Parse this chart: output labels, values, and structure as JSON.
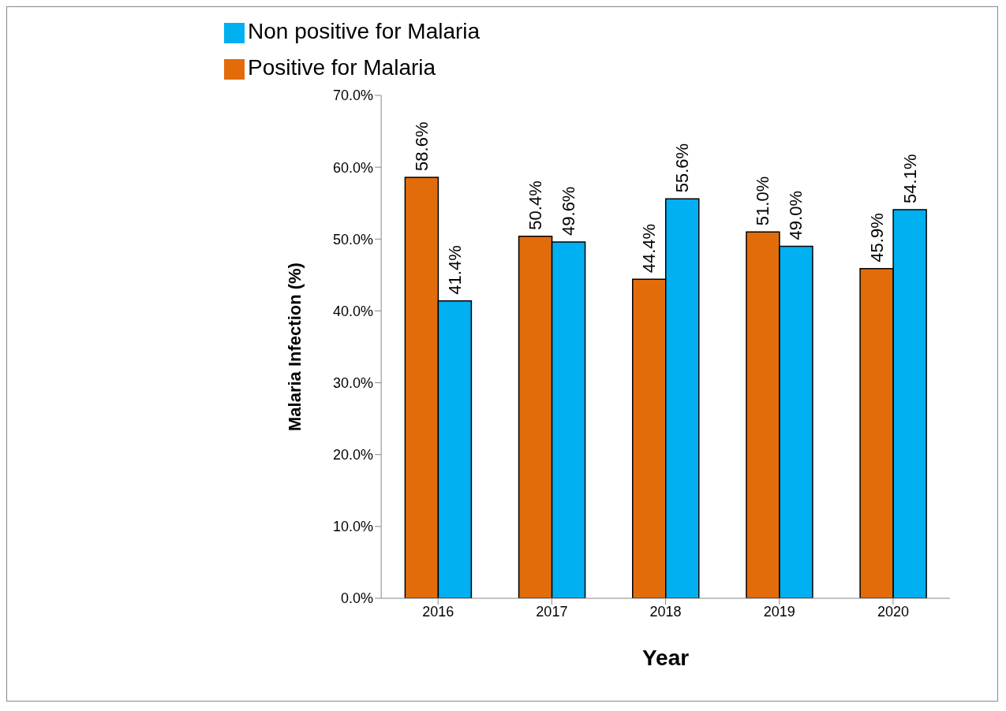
{
  "chart_data": {
    "type": "bar",
    "xlabel": "Year",
    "ylabel": "Malaria Infection (%)",
    "categories": [
      "2016",
      "2017",
      "2018",
      "2019",
      "2020"
    ],
    "series": [
      {
        "name": "Positive for Malaria",
        "color": "#e36c0a",
        "values": [
          58.6,
          50.4,
          44.4,
          51.0,
          45.9
        ],
        "value_labels": [
          "58.6%",
          "50.4%",
          "44.4%",
          "51.0%",
          "45.9%"
        ]
      },
      {
        "name": "Non positive for Malaria",
        "color": "#00b0f0",
        "values": [
          41.4,
          49.6,
          55.6,
          49.0,
          54.1
        ],
        "value_labels": [
          "41.4%",
          "49.6%",
          "55.6%",
          "49.0%",
          "54.1%"
        ]
      }
    ],
    "ylim": [
      0,
      70
    ],
    "yticks": [
      {
        "value": 0,
        "label": "0.0%"
      },
      {
        "value": 10,
        "label": "10.0%"
      },
      {
        "value": 20,
        "label": "20.0%"
      },
      {
        "value": 30,
        "label": "30.0%"
      },
      {
        "value": 40,
        "label": "40.0%"
      },
      {
        "value": 50,
        "label": "50.0%"
      },
      {
        "value": 60,
        "label": "60.0%"
      },
      {
        "value": 70,
        "label": "70.0%"
      }
    ],
    "grid": false,
    "legend": "top"
  }
}
